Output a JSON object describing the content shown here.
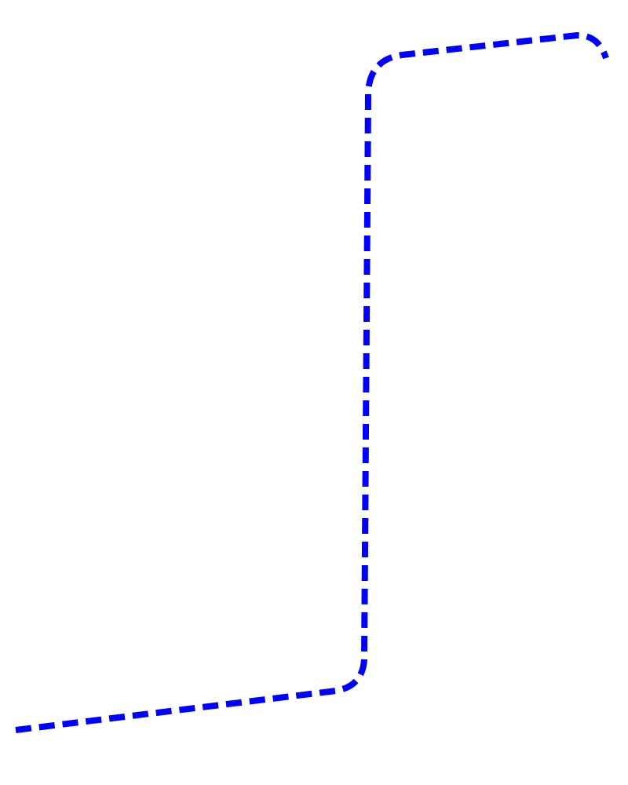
{
  "diagram": {
    "background_color": "#ffffff",
    "connector": {
      "stroke_color": "#0000ff",
      "style": "dashed",
      "shape": "rounded-orthogonal"
    }
  }
}
